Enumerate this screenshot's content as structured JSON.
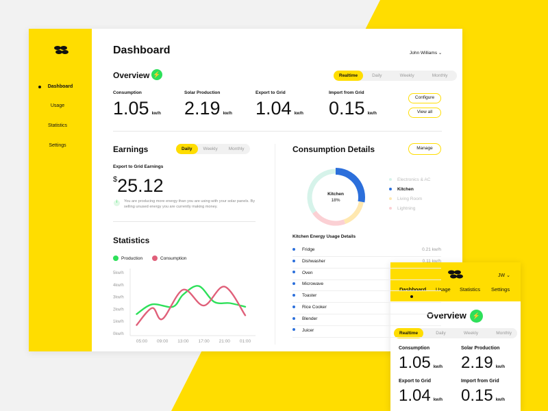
{
  "colors": {
    "accent": "#ffdd00",
    "production": "#2ee05a",
    "consumption": "#e0607a",
    "kitchen": "#2c6fdb"
  },
  "sidebar": {
    "items": [
      {
        "label": "Dashboard",
        "active": true
      },
      {
        "label": "Usage"
      },
      {
        "label": "Statistics"
      },
      {
        "label": "Settings"
      }
    ]
  },
  "header": {
    "title": "Dashboard",
    "user": "John Williams"
  },
  "overview": {
    "title": "Overview",
    "icon": "bolt-icon",
    "tabs": [
      "Realtime",
      "Daily",
      "Weekly",
      "Monthly"
    ],
    "active_tab": "Realtime",
    "metrics": [
      {
        "label": "Consumption",
        "value": "1.05",
        "unit": "kw/h"
      },
      {
        "label": "Solar Production",
        "value": "2.19",
        "unit": "kw/h"
      },
      {
        "label": "Export to Grid",
        "value": "1.04",
        "unit": "kw/h"
      },
      {
        "label": "Import from Grid",
        "value": "0.15",
        "unit": "kw/h"
      }
    ],
    "configure": "Configure",
    "view_all": "View all"
  },
  "earnings": {
    "title": "Earnings",
    "tabs": [
      "Daily",
      "Weekly",
      "Monthly"
    ],
    "active_tab": "Daily",
    "label": "Export to Grid Earnings",
    "currency": "$",
    "value": "25.12",
    "note": "You are producing more energy than you are using with your solar panels. By selling unused energy you are currently making money."
  },
  "statistics": {
    "title": "Statistics"
  },
  "consumption": {
    "title": "Consumption Details",
    "manage": "Manage",
    "center_label": "Kitchen",
    "center_value": "18%",
    "legend": [
      "Electronics & AC",
      "Kitchen",
      "Living Room",
      "Lightning"
    ],
    "details_title": "Kitchen Energy Usage Details",
    "items": [
      {
        "name": "Fridge",
        "value": "0.21 kw/h"
      },
      {
        "name": "Dishwasher",
        "value": "0.11 kw/h"
      },
      {
        "name": "Oven",
        "value": ""
      },
      {
        "name": "Microwave",
        "value": ""
      },
      {
        "name": "Toaster",
        "value": ""
      },
      {
        "name": "Rice Cooker",
        "value": ""
      },
      {
        "name": "Blender",
        "value": ""
      },
      {
        "name": "Juicer",
        "value": ""
      }
    ]
  },
  "mobile": {
    "user": "JW",
    "nav": [
      "Dashboard",
      "Usage",
      "Statistics",
      "Settings"
    ],
    "title": "Overview",
    "tabs": [
      "Realtime",
      "Daily",
      "Weekly",
      "Monthly"
    ]
  },
  "chart_data": {
    "type": "line",
    "x_ticks": [
      "05:00",
      "09:00",
      "13:00",
      "17:00",
      "21:00",
      "01:00"
    ],
    "y_ticks": [
      "0kw/h",
      "1kw/h",
      "2kw/h",
      "3kw/h",
      "4kw/h",
      "5kw/h"
    ],
    "ylim": [
      0,
      5
    ],
    "legend": "top-left",
    "series": [
      {
        "name": "Production",
        "points": [
          [
            "04:00",
            1.6
          ],
          [
            "07:00",
            2.4
          ],
          [
            "11:00",
            2.2
          ],
          [
            "13:00",
            3.2
          ],
          [
            "16:00",
            3.9
          ],
          [
            "19:00",
            2.6
          ],
          [
            "22:00",
            2.5
          ],
          [
            "01:00",
            2.2
          ]
        ]
      },
      {
        "name": "Consumption",
        "points": [
          [
            "04:00",
            0.7
          ],
          [
            "07:00",
            2.1
          ],
          [
            "09:00",
            1.2
          ],
          [
            "13:00",
            3.6
          ],
          [
            "17:00",
            2.3
          ],
          [
            "21:00",
            3.85
          ],
          [
            "01:00",
            1.5
          ]
        ]
      }
    ]
  }
}
